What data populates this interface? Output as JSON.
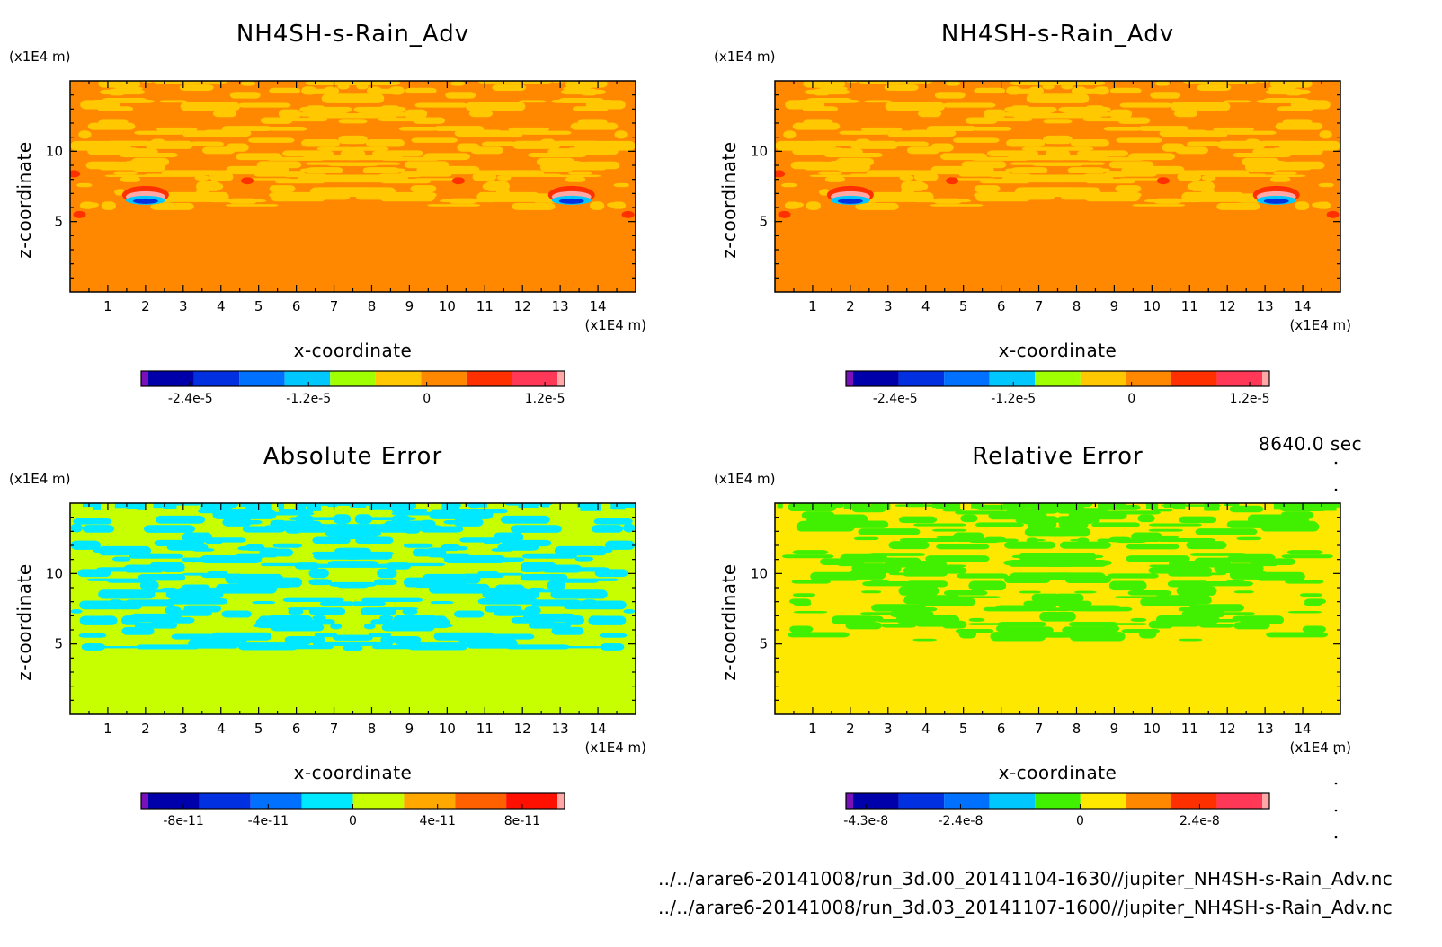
{
  "time_label": "8640.0 sec",
  "files": [
    "../../arare6-20141008/run_3d.00_20141104-1630//jupiter_NH4SH-s-Rain_Adv.nc",
    "../../arare6-20141008/run_3d.03_20141107-1600//jupiter_NH4SH-s-Rain_Adv.nc"
  ],
  "chart_data": [
    {
      "type": "heatmap",
      "title": "NH4SH-s-Rain_Adv",
      "xlabel": "x-coordinate",
      "ylabel": "z-coordinate",
      "xunit": "(x1E4 m)",
      "yunit": "(x1E4 m)",
      "xlim": [
        0,
        15
      ],
      "ylim": [
        0,
        15
      ],
      "xticks": [
        1,
        2,
        3,
        4,
        5,
        6,
        7,
        8,
        9,
        10,
        11,
        12,
        13,
        14
      ],
      "yticks": [
        5,
        10
      ],
      "colorbar_colors": [
        "#7a10b8",
        "#0000aa",
        "#0030e0",
        "#0070ff",
        "#00c8ff",
        "#a0ff00",
        "#ffc800",
        "#ff8800",
        "#ff3000",
        "#ff3858",
        "#ffa8a8"
      ],
      "colorbar_ticks": [
        {
          "value": -2.4e-05,
          "label": "-2.4e-5"
        },
        {
          "value": -1.2e-05,
          "label": "-1.2e-5"
        },
        {
          "value": 0,
          "label": "0"
        },
        {
          "value": 1.2e-05,
          "label": "1.2e-5"
        }
      ],
      "colorbar_range": [
        -2.9e-05,
        1.4e-05
      ],
      "background_color": "#ff8800",
      "pattern_color": "#ffc800"
    },
    {
      "type": "heatmap",
      "title": "NH4SH-s-Rain_Adv",
      "xlabel": "x-coordinate",
      "ylabel": "z-coordinate",
      "xunit": "(x1E4 m)",
      "yunit": "(x1E4 m)",
      "xlim": [
        0,
        15
      ],
      "ylim": [
        0,
        15
      ],
      "xticks": [
        1,
        2,
        3,
        4,
        5,
        6,
        7,
        8,
        9,
        10,
        11,
        12,
        13,
        14
      ],
      "yticks": [
        5,
        10
      ],
      "colorbar_colors": [
        "#7a10b8",
        "#0000aa",
        "#0030e0",
        "#0070ff",
        "#00c8ff",
        "#a0ff00",
        "#ffc800",
        "#ff8800",
        "#ff3000",
        "#ff3858",
        "#ffa8a8"
      ],
      "colorbar_ticks": [
        {
          "value": -2.4e-05,
          "label": "-2.4e-5"
        },
        {
          "value": -1.2e-05,
          "label": "-1.2e-5"
        },
        {
          "value": 0,
          "label": "0"
        },
        {
          "value": 1.2e-05,
          "label": "1.2e-5"
        }
      ],
      "colorbar_range": [
        -2.9e-05,
        1.4e-05
      ],
      "background_color": "#ff8800",
      "pattern_color": "#ffc800"
    },
    {
      "type": "heatmap",
      "title": "Absolute Error",
      "xlabel": "x-coordinate",
      "ylabel": "z-coordinate",
      "xunit": "(x1E4 m)",
      "yunit": "(x1E4 m)",
      "xlim": [
        0,
        15
      ],
      "ylim": [
        0,
        15
      ],
      "xticks": [
        1,
        2,
        3,
        4,
        5,
        6,
        7,
        8,
        9,
        10,
        11,
        12,
        13,
        14
      ],
      "yticks": [
        5,
        10
      ],
      "colorbar_colors": [
        "#7a10b8",
        "#0000aa",
        "#0030e0",
        "#0070ff",
        "#00e8ff",
        "#c8ff00",
        "#ffa800",
        "#ff6000",
        "#ff1000",
        "#ffa8a8"
      ],
      "colorbar_ticks": [
        {
          "value": -8e-11,
          "label": "-8e-11"
        },
        {
          "value": -4e-11,
          "label": "-4e-11"
        },
        {
          "value": 0,
          "label": "0"
        },
        {
          "value": 4e-11,
          "label": "4e-11"
        },
        {
          "value": 8e-11,
          "label": "8e-11"
        }
      ],
      "colorbar_range": [
        -1e-10,
        1e-10
      ],
      "background_color": "#c8ff00",
      "pattern_color": "#00e8ff"
    },
    {
      "type": "heatmap",
      "title": "Relative Error",
      "xlabel": "x-coordinate",
      "ylabel": "z-coordinate",
      "xunit": "(x1E4 m)",
      "yunit": "(x1E4 m)",
      "xlim": [
        0,
        15
      ],
      "ylim": [
        0,
        15
      ],
      "xticks": [
        1,
        2,
        3,
        4,
        5,
        6,
        7,
        8,
        9,
        10,
        11,
        12,
        13,
        14
      ],
      "yticks": [
        5,
        10
      ],
      "colorbar_colors": [
        "#7a10b8",
        "#0000aa",
        "#0030e0",
        "#0070ff",
        "#00c8ff",
        "#40f000",
        "#ffe800",
        "#ff8800",
        "#ff3000",
        "#ff3858",
        "#ffa8a8"
      ],
      "colorbar_ticks": [
        {
          "value": -4.3e-08,
          "label": "-4.3e-8"
        },
        {
          "value": -2.4e-08,
          "label": "-2.4e-8"
        },
        {
          "value": 0,
          "label": "0"
        },
        {
          "value": 2.4e-08,
          "label": "2.4e-8"
        }
      ],
      "colorbar_range": [
        -4.7e-08,
        3.8e-08
      ],
      "background_color": "#ffe800",
      "pattern_color": "#40f000"
    }
  ]
}
